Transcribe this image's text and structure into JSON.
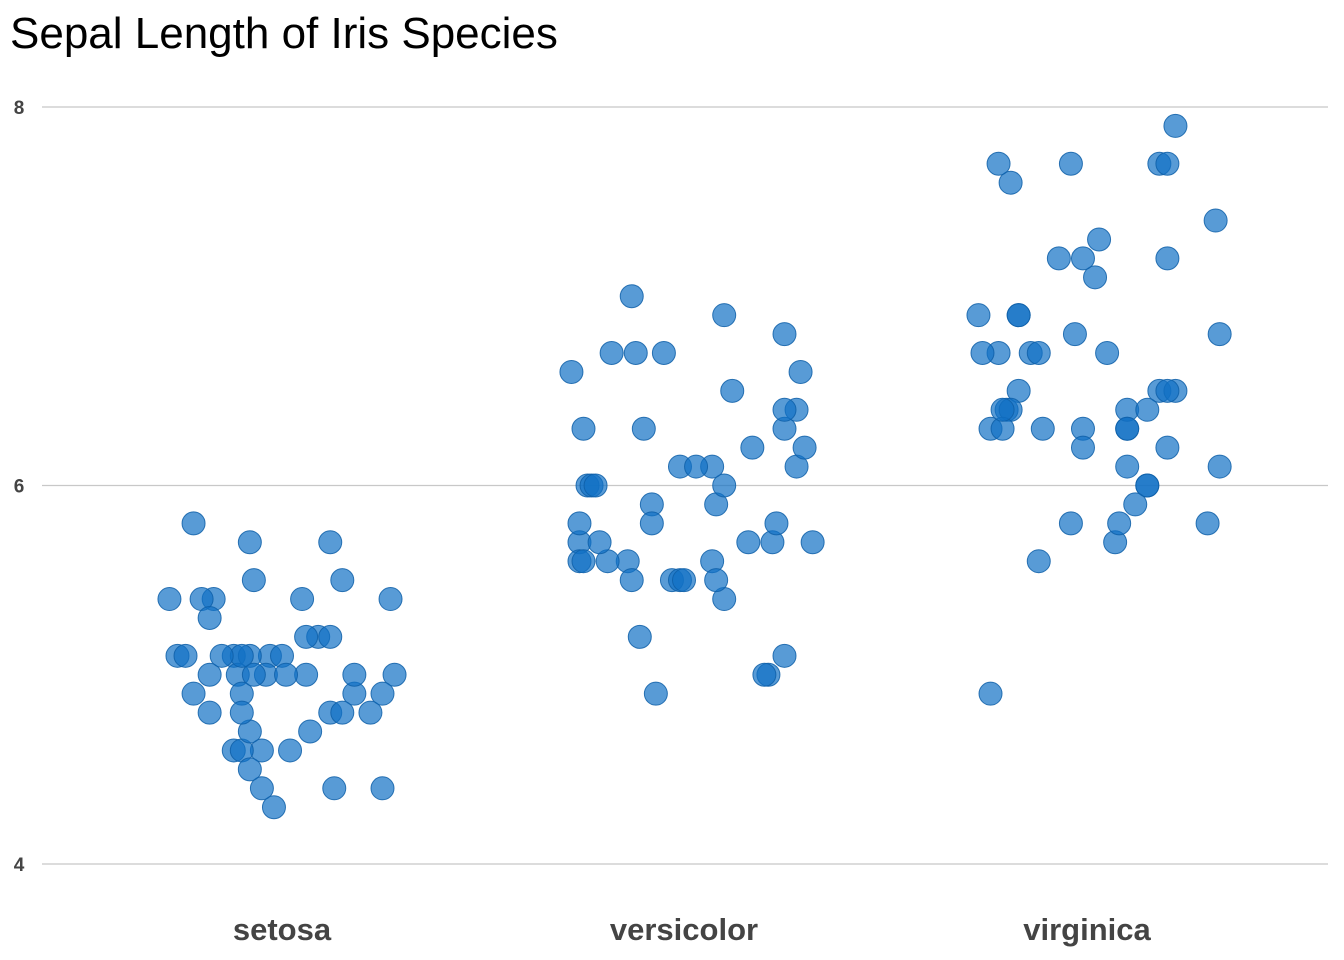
{
  "colors": {
    "point_fill": "#1170C4",
    "point_stroke": "#0E5FA8",
    "grid": "#C8C8C8",
    "tick_text": "#444444"
  },
  "chart_data": {
    "type": "scatter",
    "title": "Sepal Length of Iris Species",
    "xlabel": "",
    "ylabel": "",
    "ylim": [
      4,
      8
    ],
    "yticks": [
      4,
      6,
      8
    ],
    "grid": true,
    "categories": [
      "setosa",
      "versicolor",
      "virginica"
    ],
    "jitter": true,
    "series": [
      {
        "name": "setosa",
        "category": "setosa",
        "values": [
          5.1,
          4.9,
          4.7,
          4.6,
          5.0,
          5.4,
          4.6,
          5.0,
          4.4,
          4.9,
          5.4,
          4.8,
          4.8,
          4.3,
          5.8,
          5.7,
          5.4,
          5.1,
          5.7,
          5.1,
          5.4,
          5.1,
          4.6,
          5.1,
          4.8,
          5.0,
          5.0,
          5.2,
          5.2,
          4.7,
          4.8,
          5.4,
          5.2,
          5.5,
          4.9,
          5.0,
          5.5,
          4.9,
          4.4,
          5.1,
          5.0,
          4.5,
          4.4,
          5.0,
          5.1,
          4.8,
          5.1,
          4.6,
          5.3,
          5.0
        ],
        "jitter": [
          -0.26,
          -0.22,
          0.07,
          -0.05,
          -0.18,
          0.27,
          -0.12,
          0.28,
          0.25,
          0.18,
          -0.28,
          0.22,
          -0.18,
          -0.02,
          -0.22,
          0.12,
          0.05,
          -0.12,
          -0.08,
          -0.24,
          -0.17,
          -0.03,
          -0.1,
          0.0,
          0.12,
          -0.11,
          0.18,
          0.09,
          0.12,
          -0.08,
          0.15,
          -0.2,
          0.06,
          -0.07,
          -0.1,
          -0.04,
          0.15,
          0.25,
          -0.05,
          -0.08,
          -0.07,
          -0.08,
          0.13,
          0.06,
          -0.1,
          -0.1,
          -0.15,
          0.02,
          -0.18,
          0.01
        ]
      },
      {
        "name": "versicolor",
        "category": "versicolor",
        "values": [
          7.0,
          6.4,
          6.9,
          5.5,
          6.5,
          5.7,
          6.3,
          4.9,
          6.6,
          5.2,
          5.0,
          5.9,
          6.0,
          6.1,
          5.6,
          6.7,
          5.6,
          5.8,
          6.2,
          5.6,
          5.9,
          6.1,
          6.3,
          6.1,
          6.4,
          6.6,
          6.8,
          6.7,
          6.0,
          5.7,
          5.5,
          5.5,
          5.8,
          6.0,
          5.4,
          6.0,
          6.7,
          6.3,
          5.6,
          5.5,
          5.5,
          6.1,
          5.8,
          5.0,
          5.6,
          5.7,
          5.7,
          6.2,
          5.1,
          5.7
        ],
        "jitter": [
          -0.13,
          0.28,
          0.1,
          -0.03,
          0.12,
          0.22,
          0.25,
          -0.07,
          -0.28,
          -0.11,
          0.21,
          0.08,
          0.1,
          0.07,
          0.07,
          -0.18,
          -0.14,
          0.23,
          0.17,
          -0.19,
          -0.08,
          -0.01,
          -0.25,
          0.28,
          0.25,
          0.29,
          0.25,
          -0.05,
          -0.24,
          -0.26,
          -0.13,
          -0.01,
          -0.26,
          -0.23,
          0.1,
          -0.22,
          -0.12,
          -0.1,
          -0.26,
          0.0,
          0.08,
          0.03,
          -0.08,
          0.2,
          -0.25,
          -0.21,
          0.16,
          0.3,
          0.25,
          0.32
        ]
      },
      {
        "name": "virginica",
        "category": "virginica",
        "values": [
          6.3,
          5.8,
          7.1,
          6.3,
          6.5,
          7.6,
          4.9,
          7.3,
          6.7,
          7.2,
          6.5,
          6.4,
          6.8,
          5.7,
          5.8,
          6.4,
          6.5,
          7.7,
          7.7,
          6.0,
          6.9,
          5.6,
          7.7,
          6.3,
          6.7,
          7.2,
          6.2,
          6.1,
          6.4,
          7.2,
          7.4,
          7.9,
          6.4,
          6.3,
          6.1,
          7.7,
          6.3,
          6.4,
          6.0,
          6.9,
          6.7,
          6.9,
          5.8,
          6.8,
          6.7,
          6.7,
          6.3,
          6.5,
          6.2,
          5.9
        ],
        "jitter": [
          -0.11,
          0.3,
          0.02,
          0.1,
          0.18,
          -0.19,
          -0.24,
          0.03,
          -0.14,
          0.2,
          0.22,
          -0.2,
          -0.03,
          0.07,
          0.08,
          0.1,
          -0.17,
          -0.22,
          0.18,
          0.15,
          -0.27,
          -0.12,
          -0.04,
          -0.24,
          0.05,
          -0.07,
          0.2,
          0.33,
          -0.19,
          -0.01,
          0.32,
          0.22,
          0.15,
          -0.21,
          0.1,
          0.2,
          -0.01,
          -0.21,
          0.15,
          -0.17,
          -0.12,
          -0.17,
          -0.04,
          0.33,
          -0.22,
          -0.26,
          0.1,
          0.2,
          -0.01,
          0.12
        ]
      }
    ]
  }
}
